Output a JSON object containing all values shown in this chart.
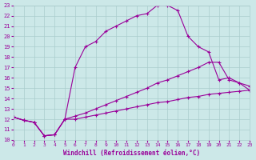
{
  "xlabel": "Windchill (Refroidissement éolien,°C)",
  "xlim": [
    0,
    23
  ],
  "ylim": [
    10,
    23
  ],
  "xticks": [
    0,
    1,
    2,
    3,
    4,
    5,
    6,
    7,
    8,
    9,
    10,
    11,
    12,
    13,
    14,
    15,
    16,
    17,
    18,
    19,
    20,
    21,
    22,
    23
  ],
  "yticks": [
    10,
    11,
    12,
    13,
    14,
    15,
    16,
    17,
    18,
    19,
    20,
    21,
    22,
    23
  ],
  "background_color": "#cce8e8",
  "line_color": "#990099",
  "line_top_x": [
    0,
    1,
    2,
    3,
    4,
    5,
    6,
    7,
    8,
    9,
    10,
    11,
    12,
    13,
    14,
    15,
    16,
    17,
    18,
    19,
    20,
    21,
    22,
    23
  ],
  "line_top_y": [
    12.2,
    11.9,
    11.7,
    10.4,
    10.5,
    12.0,
    17.0,
    19.0,
    19.5,
    20.5,
    21.0,
    21.5,
    22.0,
    22.2,
    23.0,
    23.0,
    22.5,
    20.0,
    19.0,
    18.5,
    15.8,
    16.0,
    15.5,
    15.2
  ],
  "line_mid_x": [
    0,
    1,
    2,
    3,
    4,
    5,
    6,
    7,
    8,
    9,
    10,
    11,
    12,
    13,
    14,
    15,
    16,
    17,
    18,
    19,
    20,
    21,
    22,
    23
  ],
  "line_mid_y": [
    12.2,
    11.9,
    11.7,
    10.4,
    10.5,
    12.0,
    12.3,
    12.6,
    13.0,
    13.4,
    13.8,
    14.2,
    14.6,
    15.0,
    15.5,
    15.8,
    16.2,
    16.6,
    17.0,
    17.5,
    17.5,
    15.8,
    15.5,
    14.8
  ],
  "line_bot_x": [
    0,
    1,
    2,
    3,
    4,
    5,
    6,
    7,
    8,
    9,
    10,
    11,
    12,
    13,
    14,
    15,
    16,
    17,
    18,
    19,
    20,
    21,
    22,
    23
  ],
  "line_bot_y": [
    12.2,
    11.9,
    11.7,
    10.4,
    10.5,
    12.0,
    12.0,
    12.2,
    12.4,
    12.6,
    12.8,
    13.0,
    13.2,
    13.4,
    13.6,
    13.7,
    13.9,
    14.1,
    14.2,
    14.4,
    14.5,
    14.6,
    14.7,
    14.8
  ]
}
